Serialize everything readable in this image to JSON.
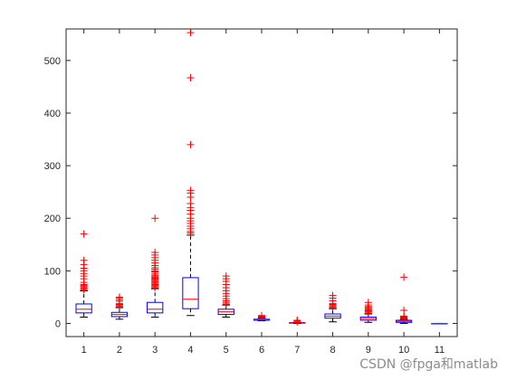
{
  "chart_data": {
    "type": "boxplot",
    "categories": [
      "1",
      "2",
      "3",
      "4",
      "5",
      "6",
      "7",
      "8",
      "9",
      "10",
      "11"
    ],
    "ylim": [
      -25,
      560
    ],
    "yticks": [
      0,
      100,
      200,
      300,
      400,
      500
    ],
    "grid": false,
    "title": "",
    "xlabel": "",
    "ylabel": "",
    "colors": {
      "box": "#0000ff",
      "median": "#ff0000",
      "whisker": "#000000",
      "outlier": "#ff0000",
      "axes": "#262626"
    },
    "boxes": [
      {
        "category": "1",
        "whisker_low": 12,
        "q1": 20,
        "median": 27,
        "q3": 37,
        "whisker_high": 62,
        "outliers": [
          64,
          66,
          68,
          70,
          72,
          74,
          78,
          85,
          90,
          95,
          100,
          105,
          112,
          120,
          170
        ]
      },
      {
        "category": "2",
        "whisker_low": 8,
        "q1": 13,
        "median": 17,
        "q3": 21,
        "whisker_high": 30,
        "outliers": [
          32,
          34,
          36,
          38,
          42,
          45,
          48,
          50
        ]
      },
      {
        "category": "3",
        "whisker_low": 12,
        "q1": 20,
        "median": 27,
        "q3": 40,
        "whisker_high": 66,
        "outliers": [
          68,
          70,
          72,
          74,
          76,
          78,
          80,
          82,
          84,
          86,
          88,
          90,
          92,
          95,
          98,
          100,
          103,
          106,
          110,
          115,
          120,
          125,
          130,
          135,
          200
        ]
      },
      {
        "category": "4",
        "whisker_low": 15,
        "q1": 28,
        "median": 46,
        "q3": 87,
        "whisker_high": 168,
        "outliers": [
          172,
          175,
          180,
          185,
          190,
          195,
          200,
          208,
          215,
          220,
          228,
          240,
          248,
          253,
          340,
          467,
          553
        ]
      },
      {
        "category": "5",
        "whisker_low": 12,
        "q1": 17,
        "median": 22,
        "q3": 27,
        "whisker_high": 35,
        "outliers": [
          37,
          40,
          43,
          47,
          52,
          57,
          62,
          68,
          74,
          80,
          85,
          90
        ]
      },
      {
        "category": "6",
        "whisker_low": 5,
        "q1": 6,
        "median": 7,
        "q3": 8,
        "whisker_high": 10,
        "outliers": [
          11,
          12,
          13,
          14,
          15
        ]
      },
      {
        "category": "7",
        "whisker_low": 0,
        "q1": 0.5,
        "median": 1,
        "q3": 1.5,
        "whisker_high": 2,
        "outliers": [
          3,
          5,
          6
        ]
      },
      {
        "category": "8",
        "whisker_low": 3,
        "q1": 10,
        "median": 14,
        "q3": 18,
        "whisker_high": 28,
        "outliers": [
          30,
          32,
          34,
          36,
          38,
          43,
          48,
          53
        ]
      },
      {
        "category": "9",
        "whisker_low": 2,
        "q1": 6,
        "median": 9,
        "q3": 12,
        "whisker_high": 18,
        "outliers": [
          20,
          22,
          24,
          26,
          28,
          30,
          32,
          35,
          40
        ]
      },
      {
        "category": "10",
        "whisker_low": 0,
        "q1": 2,
        "median": 4,
        "q3": 6,
        "whisker_high": 8,
        "outliers": [
          9,
          10,
          11,
          12,
          13,
          14,
          25,
          88
        ]
      },
      {
        "category": "11",
        "whisker_low": 0,
        "q1": 0,
        "median": 0,
        "q3": 0,
        "whisker_high": 0,
        "outliers": []
      }
    ]
  },
  "watermark": "CSDN @fpga和matlab"
}
